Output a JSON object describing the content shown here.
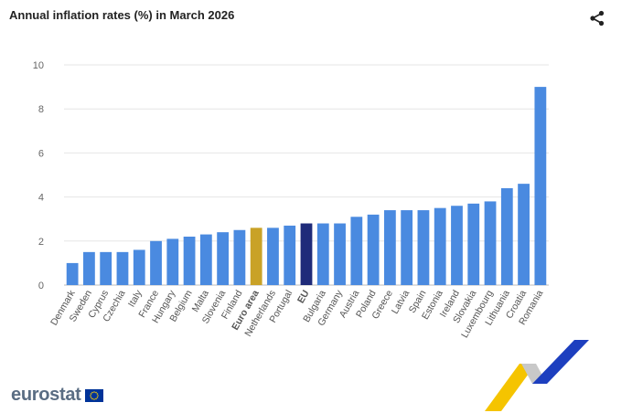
{
  "title": "Annual inflation rates (%) in March 2026",
  "logo_text": "eurostat",
  "icons": {
    "share": "share-icon",
    "flag": "eu-flag-icon"
  },
  "colors": {
    "bar": "#4a8ae0",
    "euro_area": "#c9a227",
    "eu": "#1f2b7a",
    "grid": "#e6e6e6",
    "axis_text": "#666666",
    "logo_yellow": "#f5c400",
    "logo_blue": "#1d3fbf",
    "logo_grey": "#b0b0b0",
    "flag_blue": "#003399",
    "flag_star": "#ffcc00"
  },
  "chart_data": {
    "type": "bar",
    "title": "Annual inflation rates (%) in March 2026",
    "xlabel": "",
    "ylabel": "",
    "ylim": [
      0,
      10
    ],
    "yticks": [
      0,
      2,
      4,
      6,
      8,
      10
    ],
    "grid": true,
    "categories": [
      "Denmark",
      "Sweden",
      "Cyprus",
      "Czechia",
      "Italy",
      "France",
      "Hungary",
      "Belgium",
      "Malta",
      "Slovenia",
      "Finland",
      "Euro area",
      "Netherlands",
      "Portugal",
      "EU",
      "Bulgaria",
      "Germany",
      "Austria",
      "Poland",
      "Greece",
      "Latvia",
      "Spain",
      "Estonia",
      "Ireland",
      "Slovakia",
      "Luxembourg",
      "Lithuania",
      "Croatia",
      "Romania"
    ],
    "values": [
      1.0,
      1.5,
      1.5,
      1.5,
      1.6,
      2.0,
      2.1,
      2.2,
      2.3,
      2.4,
      2.5,
      2.6,
      2.6,
      2.7,
      2.8,
      2.8,
      2.8,
      3.1,
      3.2,
      3.4,
      3.4,
      3.4,
      3.5,
      3.6,
      3.7,
      3.8,
      4.4,
      4.6,
      9.0
    ],
    "highlights": {
      "Euro area": "euro_area",
      "EU": "eu"
    },
    "bold_labels": [
      "Euro area",
      "EU"
    ]
  }
}
